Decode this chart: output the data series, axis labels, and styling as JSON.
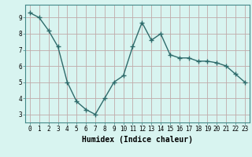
{
  "x": [
    0,
    1,
    2,
    3,
    4,
    5,
    6,
    7,
    8,
    9,
    10,
    11,
    12,
    13,
    14,
    15,
    16,
    17,
    18,
    19,
    20,
    21,
    22,
    23
  ],
  "y": [
    9.3,
    9.0,
    8.2,
    7.2,
    5.0,
    3.8,
    3.3,
    3.0,
    4.0,
    5.0,
    5.4,
    7.2,
    8.7,
    7.6,
    8.0,
    6.7,
    6.5,
    6.5,
    6.3,
    6.3,
    6.2,
    6.0,
    5.5,
    5.0
  ],
  "xlabel": "Humidex (Indice chaleur)",
  "line_color": "#2e6b6b",
  "marker": "+",
  "marker_size": 4,
  "background_color": "#d8f4f0",
  "grid_color": "#c0aaaa",
  "ylim": [
    2.5,
    9.8
  ],
  "xlim": [
    -0.5,
    23.5
  ],
  "yticks": [
    3,
    4,
    5,
    6,
    7,
    8,
    9
  ],
  "xticks": [
    0,
    1,
    2,
    3,
    4,
    5,
    6,
    7,
    8,
    9,
    10,
    11,
    12,
    13,
    14,
    15,
    16,
    17,
    18,
    19,
    20,
    21,
    22,
    23
  ],
  "xtick_labels": [
    "0",
    "1",
    "2",
    "3",
    "4",
    "5",
    "6",
    "7",
    "8",
    "9",
    "10",
    "11",
    "12",
    "13",
    "14",
    "15",
    "16",
    "17",
    "18",
    "19",
    "20",
    "21",
    "22",
    "23"
  ],
  "xlabel_fontsize": 7,
  "tick_fontsize": 5.5,
  "line_width": 1.0
}
